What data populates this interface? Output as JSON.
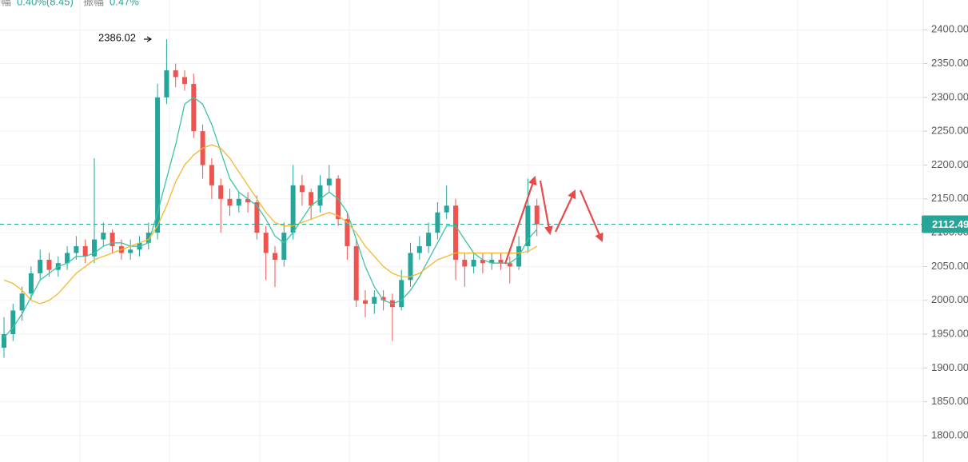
{
  "chart_data": {
    "type": "candlestick",
    "stats": [
      {
        "label": "振幅",
        "value": "0.40%(8.45)"
      },
      {
        "label": "振幅",
        "value": "0.47%"
      }
    ],
    "up_color": "#26a69a",
    "down_color": "#ef5350",
    "open": [
      1930,
      1950,
      1985,
      2010,
      2040,
      2060,
      2045,
      2055,
      2070,
      2080,
      2065,
      2090,
      2100,
      2080,
      2070,
      2075,
      2085,
      2100,
      2300,
      2340,
      2330,
      2320,
      2250,
      2200,
      2170,
      2150,
      2140,
      2150,
      2145,
      2100,
      2070,
      2060,
      2100,
      2170,
      2160,
      2140,
      2170,
      2180,
      2120,
      2080,
      2000,
      1995,
      2005,
      2000,
      1990,
      2030,
      2070,
      2080,
      2100,
      2130,
      2140,
      2060,
      2050,
      2060,
      2055,
      2060,
      2055,
      2050,
      2080,
      2140
    ],
    "high": [
      1975,
      1995,
      2020,
      2050,
      2075,
      2070,
      2065,
      2080,
      2095,
      2090,
      2210,
      2115,
      2105,
      2090,
      2090,
      2095,
      2115,
      2320,
      2386.02,
      2350,
      2340,
      2335,
      2260,
      2210,
      2180,
      2165,
      2160,
      2160,
      2155,
      2110,
      2080,
      2115,
      2200,
      2185,
      2165,
      2185,
      2200,
      2185,
      2130,
      2090,
      2015,
      2015,
      2015,
      2010,
      2045,
      2085,
      2095,
      2115,
      2145,
      2170,
      2150,
      2070,
      2070,
      2070,
      2070,
      2070,
      2065,
      2095,
      2180,
      2150
    ],
    "low": [
      1915,
      1940,
      1970,
      2000,
      2030,
      2035,
      2035,
      2045,
      2060,
      2055,
      2055,
      2080,
      2070,
      2060,
      2060,
      2065,
      2075,
      2090,
      2290,
      2315,
      2310,
      2240,
      2180,
      2150,
      2100,
      2125,
      2130,
      2130,
      2090,
      2030,
      2020,
      2050,
      2090,
      2140,
      2120,
      2130,
      2160,
      2110,
      2060,
      1990,
      1975,
      1980,
      1985,
      1940,
      1985,
      2020,
      2060,
      2070,
      2090,
      2120,
      2030,
      2020,
      2040,
      2040,
      2045,
      2045,
      2025,
      2045,
      2070,
      2095
    ],
    "close": [
      1950,
      1985,
      2010,
      2040,
      2060,
      2045,
      2055,
      2070,
      2080,
      2065,
      2090,
      2100,
      2080,
      2070,
      2075,
      2085,
      2100,
      2300,
      2340,
      2330,
      2320,
      2250,
      2200,
      2170,
      2150,
      2140,
      2150,
      2145,
      2100,
      2070,
      2060,
      2100,
      2170,
      2160,
      2140,
      2170,
      2180,
      2120,
      2080,
      2000,
      1995,
      2005,
      2000,
      1990,
      2030,
      2070,
      2080,
      2100,
      2130,
      2140,
      2060,
      2050,
      2060,
      2055,
      2060,
      2055,
      2050,
      2080,
      2140,
      2112.49
    ],
    "moving_averages": [
      {
        "color": "#3cc3a5",
        "values": [
          1945,
          1960,
          1980,
          2005,
          2030,
          2040,
          2050,
          2055,
          2065,
          2065,
          2070,
          2080,
          2085,
          2085,
          2080,
          2080,
          2085,
          2130,
          2180,
          2230,
          2290,
          2300,
          2290,
          2260,
          2220,
          2180,
          2160,
          2150,
          2140,
          2120,
          2095,
          2085,
          2100,
          2120,
          2140,
          2150,
          2160,
          2150,
          2130,
          2090,
          2050,
          2020,
          2000,
          1995,
          2000,
          2015,
          2035,
          2060,
          2085,
          2110,
          2110,
          2090,
          2070,
          2060,
          2055,
          2055,
          2055,
          2065,
          2090,
          2105
        ]
      },
      {
        "color": "#f5b82e",
        "values": [
          2030,
          2025,
          2015,
          2000,
          1995,
          2000,
          2010,
          2025,
          2040,
          2050,
          2060,
          2065,
          2070,
          2075,
          2080,
          2085,
          2090,
          2110,
          2140,
          2175,
          2200,
          2215,
          2225,
          2230,
          2225,
          2210,
          2190,
          2170,
          2150,
          2130,
          2115,
          2110,
          2110,
          2115,
          2120,
          2125,
          2130,
          2125,
          2115,
          2100,
          2080,
          2065,
          2050,
          2040,
          2035,
          2035,
          2040,
          2050,
          2060,
          2065,
          2070,
          2070,
          2070,
          2070,
          2070,
          2070,
          2070,
          2070,
          2072,
          2080
        ]
      }
    ],
    "last_price": 2112.49,
    "last_price_color": "#26a69a",
    "ylim": [
      1761,
      2444
    ],
    "yticks": [
      {
        "value": 1800,
        "label": "1800.00"
      },
      {
        "value": 1850,
        "label": "1850.00"
      },
      {
        "value": 1900,
        "label": "1900.00"
      },
      {
        "value": 1950,
        "label": "1950.00"
      },
      {
        "value": 2000,
        "label": "2000.00"
      },
      {
        "value": 2050,
        "label": "2050.00"
      },
      {
        "value": 2100,
        "label": "2100.00"
      },
      {
        "value": 2150,
        "label": "2150.00"
      },
      {
        "value": 2200,
        "label": "2200.00"
      },
      {
        "value": 2250,
        "label": "2250.00"
      },
      {
        "value": 2300,
        "label": "2300.00"
      },
      {
        "value": 2350,
        "label": "2350.00"
      },
      {
        "value": 2400,
        "label": "2400.00"
      }
    ],
    "grid": true
  }
}
